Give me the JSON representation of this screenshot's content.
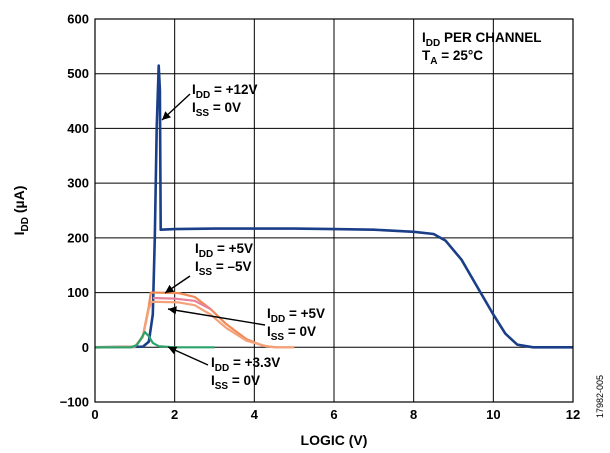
{
  "chart_data": {
    "type": "line",
    "xlabel": "LOGIC (V)",
    "ylabel": {
      "main": "I",
      "sub": "DD",
      "unit": " (µA)"
    },
    "xlim": [
      0,
      12
    ],
    "ylim": [
      -100,
      600
    ],
    "xticks": [
      0,
      2,
      4,
      6,
      8,
      10,
      12
    ],
    "yticks": [
      600,
      500,
      400,
      300,
      200,
      100,
      0,
      -100
    ],
    "xtick_labels": [
      "0",
      "2",
      "4",
      "6",
      "8",
      "10",
      "12"
    ],
    "ytick_labels": [
      "600",
      "500",
      "400",
      "300",
      "200",
      "100",
      "0",
      "−100"
    ],
    "grid": true,
    "figure_id": "17982-005",
    "legend_box": {
      "line1": {
        "main": "I",
        "sub": "DD",
        "rest": " PER CHANNEL"
      },
      "line2": {
        "main": "T",
        "sub": "A",
        "rest": " = 25°C"
      }
    },
    "series": [
      {
        "color": "#1a3e87",
        "points": [
          [
            0,
            0
          ],
          [
            1.2,
            1
          ],
          [
            1.35,
            10
          ],
          [
            1.45,
            60
          ],
          [
            1.5,
            200
          ],
          [
            1.55,
            400
          ],
          [
            1.6,
            515
          ],
          [
            1.63,
            470
          ],
          [
            1.65,
            215
          ],
          [
            2,
            216
          ],
          [
            3,
            217
          ],
          [
            4,
            217
          ],
          [
            5,
            217
          ],
          [
            6,
            216
          ],
          [
            7,
            215
          ],
          [
            8,
            211
          ],
          [
            8.5,
            207
          ],
          [
            8.8,
            195
          ],
          [
            9.2,
            160
          ],
          [
            9.6,
            110
          ],
          [
            10,
            60
          ],
          [
            10.3,
            25
          ],
          [
            10.6,
            5
          ],
          [
            11,
            0
          ],
          [
            12,
            0
          ]
        ],
        "label": {
          "l1_main": "I",
          "l1_sub": "DD",
          "l1_rest": " = +12V",
          "l2_main": "I",
          "l2_sub": "SS",
          "l2_rest": " = 0V"
        }
      },
      {
        "color": "#f08a56",
        "points": [
          [
            0,
            0
          ],
          [
            1.0,
            1
          ],
          [
            1.2,
            20
          ],
          [
            1.35,
            75
          ],
          [
            1.4,
            100
          ],
          [
            1.6,
            100
          ],
          [
            2.1,
            99
          ],
          [
            2.5,
            92
          ],
          [
            2.9,
            70
          ],
          [
            3.3,
            42
          ],
          [
            3.8,
            15
          ],
          [
            4.2,
            3
          ],
          [
            4.5,
            0
          ],
          [
            5,
            0
          ]
        ],
        "label": {
          "l1_main": "I",
          "l1_sub": "DD",
          "l1_rest": " = +5V",
          "l2_main": "I",
          "l2_sub": "SS",
          "l2_rest": " = –5V"
        }
      },
      {
        "color": "#e8809a",
        "points": [
          [
            1.45,
            90
          ],
          [
            2,
            89
          ],
          [
            2.5,
            85
          ],
          [
            2.9,
            70
          ]
        ],
        "label": null
      },
      {
        "color": "#f4a27a",
        "points": [
          [
            0,
            0
          ],
          [
            1.0,
            1
          ],
          [
            1.2,
            18
          ],
          [
            1.35,
            70
          ],
          [
            1.42,
            83
          ],
          [
            1.6,
            83
          ],
          [
            2.1,
            82
          ],
          [
            2.5,
            77
          ],
          [
            2.9,
            60
          ],
          [
            3.3,
            35
          ],
          [
            3.8,
            12
          ],
          [
            4.3,
            2
          ],
          [
            4.6,
            0
          ],
          [
            5,
            0
          ]
        ],
        "label": {
          "l1_main": "I",
          "l1_sub": "DD",
          "l1_rest": " = +5V",
          "l2_main": "I",
          "l2_sub": "SS",
          "l2_rest": " = 0V"
        }
      },
      {
        "color": "#2aa36b",
        "points": [
          [
            0,
            0
          ],
          [
            0.9,
            0
          ],
          [
            1.05,
            4
          ],
          [
            1.15,
            15
          ],
          [
            1.25,
            28
          ],
          [
            1.35,
            20
          ],
          [
            1.45,
            8
          ],
          [
            1.6,
            2
          ],
          [
            2,
            0
          ],
          [
            3,
            0
          ]
        ],
        "label": {
          "l1_main": "I",
          "l1_sub": "DD",
          "l1_rest": " = +3.3V",
          "l2_main": "I",
          "l2_sub": "SS",
          "l2_rest": " = 0V"
        }
      }
    ]
  }
}
